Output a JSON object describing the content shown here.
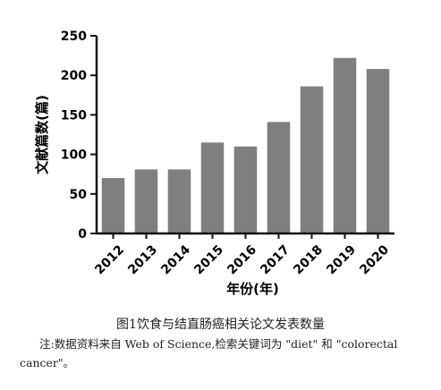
{
  "chart_data": {
    "type": "bar",
    "categories": [
      "2012",
      "2013",
      "2014",
      "2015",
      "2016",
      "2017",
      "2018",
      "2019",
      "2020"
    ],
    "values": [
      70,
      81,
      81,
      115,
      110,
      141,
      186,
      222,
      208
    ],
    "xlabel": "年份(年)",
    "ylabel": "文献篇数(篇)",
    "ylim": [
      0,
      250
    ],
    "yticks": [
      0,
      50,
      100,
      150,
      200,
      250
    ],
    "grid": false,
    "colors": {
      "bar": "#7f7f7f",
      "axis": "#111111"
    }
  },
  "caption": "图1饮食与结直肠癌相关论文发表数量",
  "note": "注:数据资料来自 Web of Science,检索关键词为 \"diet\" 和 \"colorectal cancer\"。"
}
